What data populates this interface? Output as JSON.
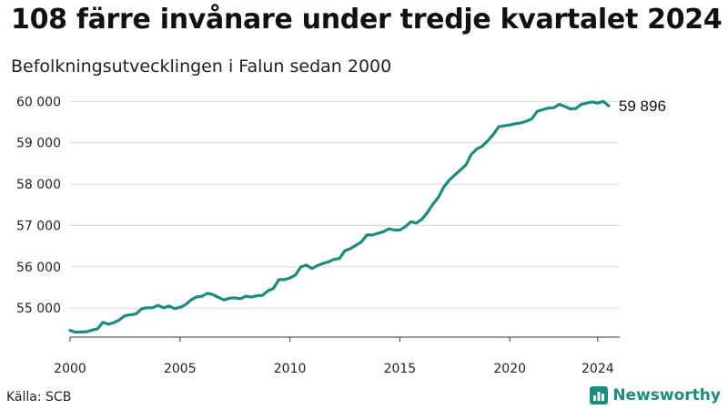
{
  "title": "108 färre invånare under tredje kvartalet 2024",
  "subtitle": "Befolkningsutvecklingen i Falun sedan 2000",
  "source": "Källa: SCB",
  "brand": {
    "name": "Newsworthy",
    "icon": "bar-chart-logo-icon",
    "color": "#1d8c7c"
  },
  "chart_data": {
    "type": "line",
    "title": "108 färre invånare under tredje kvartalet 2024",
    "subtitle": "Befolkningsutvecklingen i Falun sedan 2000",
    "xlabel": "",
    "ylabel": "",
    "x_ticks": [
      2000,
      2005,
      2010,
      2015,
      2020,
      2024
    ],
    "y_ticks": [
      55000,
      56000,
      57000,
      58000,
      59000,
      60000
    ],
    "y_tick_labels": [
      "55 000",
      "56 000",
      "57 000",
      "58 000",
      "59 000",
      "60 000"
    ],
    "xlim": [
      2000,
      2025
    ],
    "ylim": [
      54300,
      60250
    ],
    "grid": "horizontal",
    "line_color": "#1d8c7c",
    "end_label": "59 896",
    "series": [
      {
        "values": [
          [
            2000.0,
            54460
          ],
          [
            2000.25,
            54420
          ],
          [
            2000.5,
            54425
          ],
          [
            2000.75,
            54430
          ],
          [
            2001.0,
            54470
          ],
          [
            2001.25,
            54500
          ],
          [
            2001.5,
            54660
          ],
          [
            2001.75,
            54610
          ],
          [
            2002.0,
            54650
          ],
          [
            2002.25,
            54720
          ],
          [
            2002.5,
            54820
          ],
          [
            2002.75,
            54840
          ],
          [
            2003.0,
            54860
          ],
          [
            2003.25,
            54980
          ],
          [
            2003.5,
            55010
          ],
          [
            2003.75,
            55010
          ],
          [
            2004.0,
            55070
          ],
          [
            2004.25,
            55010
          ],
          [
            2004.5,
            55050
          ],
          [
            2004.75,
            54990
          ],
          [
            2005.0,
            55020
          ],
          [
            2005.25,
            55080
          ],
          [
            2005.5,
            55200
          ],
          [
            2005.75,
            55270
          ],
          [
            2006.0,
            55290
          ],
          [
            2006.25,
            55360
          ],
          [
            2006.5,
            55330
          ],
          [
            2006.75,
            55260
          ],
          [
            2007.0,
            55200
          ],
          [
            2007.25,
            55240
          ],
          [
            2007.5,
            55250
          ],
          [
            2007.75,
            55230
          ],
          [
            2008.0,
            55290
          ],
          [
            2008.25,
            55270
          ],
          [
            2008.5,
            55300
          ],
          [
            2008.75,
            55310
          ],
          [
            2009.0,
            55420
          ],
          [
            2009.25,
            55480
          ],
          [
            2009.5,
            55690
          ],
          [
            2009.75,
            55690
          ],
          [
            2010.0,
            55730
          ],
          [
            2010.25,
            55800
          ],
          [
            2010.5,
            56000
          ],
          [
            2010.75,
            56040
          ],
          [
            2011.0,
            55960
          ],
          [
            2011.25,
            56030
          ],
          [
            2011.5,
            56080
          ],
          [
            2011.75,
            56120
          ],
          [
            2012.0,
            56180
          ],
          [
            2012.25,
            56200
          ],
          [
            2012.5,
            56390
          ],
          [
            2012.75,
            56440
          ],
          [
            2013.0,
            56520
          ],
          [
            2013.25,
            56600
          ],
          [
            2013.5,
            56770
          ],
          [
            2013.75,
            56770
          ],
          [
            2014.0,
            56810
          ],
          [
            2014.25,
            56850
          ],
          [
            2014.5,
            56920
          ],
          [
            2014.75,
            56890
          ],
          [
            2015.0,
            56890
          ],
          [
            2015.25,
            56970
          ],
          [
            2015.5,
            57090
          ],
          [
            2015.75,
            57060
          ],
          [
            2016.0,
            57150
          ],
          [
            2016.25,
            57310
          ],
          [
            2016.5,
            57510
          ],
          [
            2016.75,
            57680
          ],
          [
            2017.0,
            57930
          ],
          [
            2017.25,
            58100
          ],
          [
            2017.5,
            58220
          ],
          [
            2017.75,
            58340
          ],
          [
            2018.0,
            58460
          ],
          [
            2018.25,
            58720
          ],
          [
            2018.5,
            58850
          ],
          [
            2018.75,
            58920
          ],
          [
            2019.0,
            59050
          ],
          [
            2019.25,
            59200
          ],
          [
            2019.5,
            59390
          ],
          [
            2019.75,
            59410
          ],
          [
            2020.0,
            59430
          ],
          [
            2020.25,
            59460
          ],
          [
            2020.5,
            59480
          ],
          [
            2020.75,
            59520
          ],
          [
            2021.0,
            59580
          ],
          [
            2021.25,
            59760
          ],
          [
            2021.5,
            59800
          ],
          [
            2021.75,
            59840
          ],
          [
            2022.0,
            59850
          ],
          [
            2022.25,
            59930
          ],
          [
            2022.5,
            59880
          ],
          [
            2022.75,
            59820
          ],
          [
            2023.0,
            59830
          ],
          [
            2023.25,
            59930
          ],
          [
            2023.5,
            59960
          ],
          [
            2023.75,
            59990
          ],
          [
            2024.0,
            59960
          ],
          [
            2024.25,
            60004
          ],
          [
            2024.5,
            59896
          ]
        ]
      }
    ]
  }
}
